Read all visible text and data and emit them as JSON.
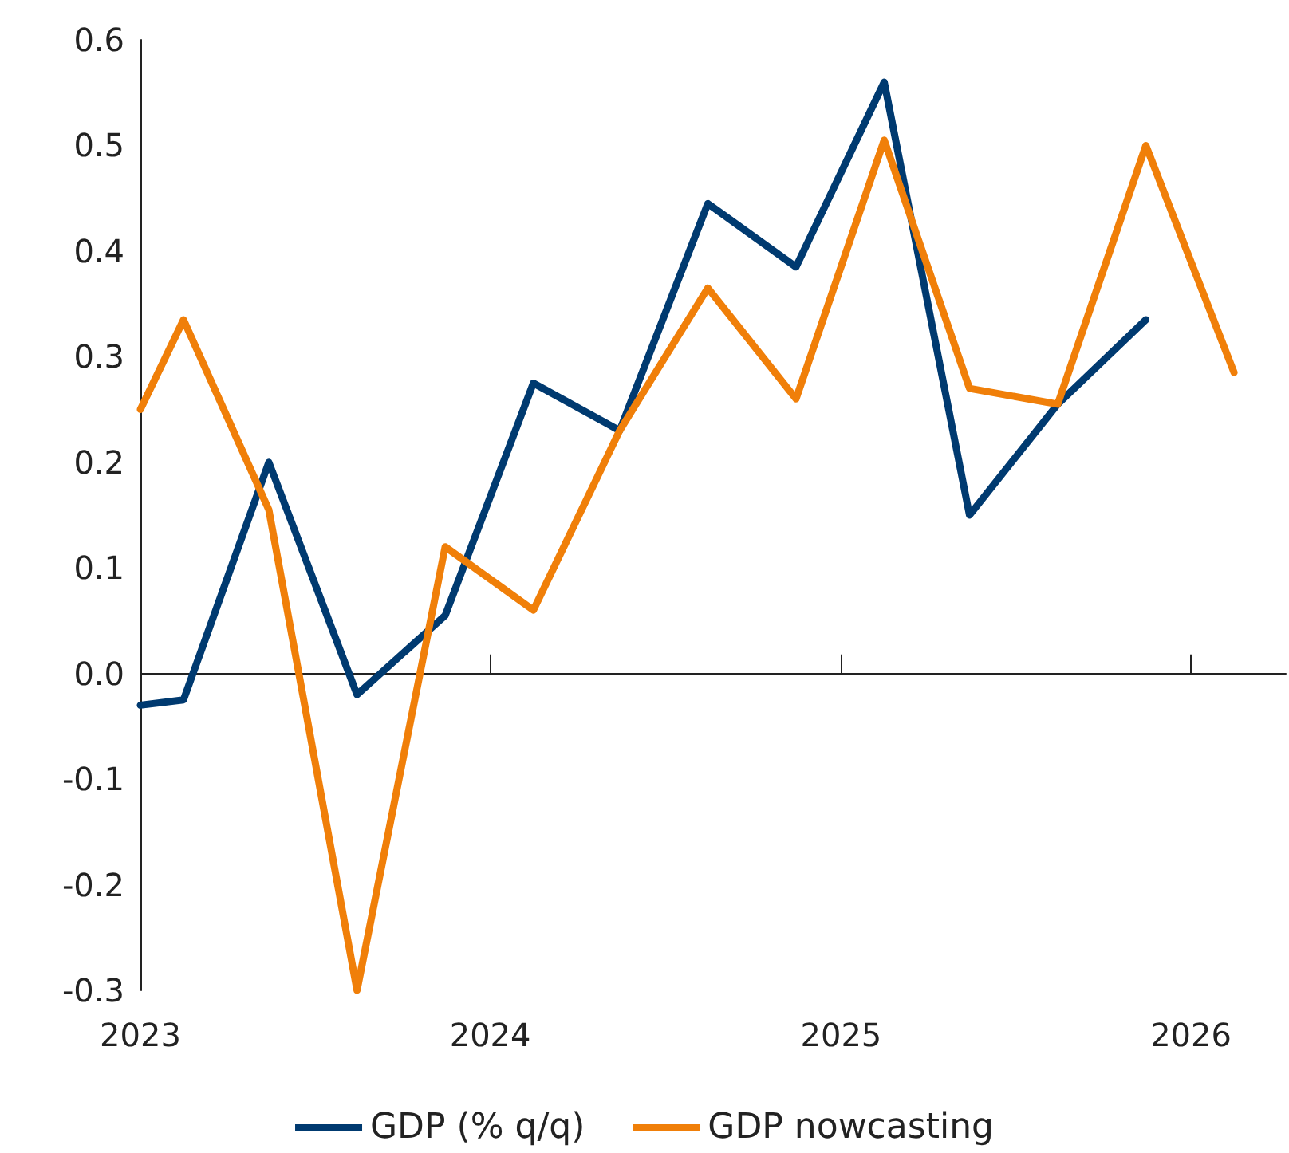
{
  "chart_data": {
    "type": "line",
    "x": [
      "2023-01-01",
      "2023-02-15",
      "2023-05-15",
      "2023-08-15",
      "2023-11-15",
      "2024-02-15",
      "2024-05-15",
      "2024-08-15",
      "2024-11-15",
      "2025-02-15",
      "2025-05-15",
      "2025-08-15",
      "2025-11-15",
      "2026-02-15"
    ],
    "series": [
      {
        "name": "GDP (% q/q)",
        "color": "#003a70",
        "values": [
          -0.03,
          -0.025,
          0.2,
          -0.02,
          0.055,
          0.275,
          0.23,
          0.445,
          0.385,
          0.56,
          0.15,
          0.255,
          0.335,
          null
        ]
      },
      {
        "name": "GDP nowcasting",
        "color": "#f07f09",
        "values": [
          0.25,
          0.335,
          0.155,
          -0.3,
          0.12,
          0.06,
          0.23,
          0.365,
          0.26,
          0.505,
          0.27,
          0.255,
          0.5,
          0.285
        ]
      }
    ],
    "xlim": [
      "2023-01-01",
      "2026-04-10"
    ],
    "xticks": [
      {
        "value": "2023-01-01",
        "label": "2023"
      },
      {
        "value": "2024-01-01",
        "label": "2024"
      },
      {
        "value": "2025-01-01",
        "label": "2025"
      },
      {
        "value": "2026-01-01",
        "label": "2026"
      }
    ],
    "ylim": [
      -0.3,
      0.6
    ],
    "yticks": [
      -0.3,
      -0.2,
      -0.1,
      {
        "value": 0,
        "label": "0.0"
      },
      0.1,
      0.2,
      0.3,
      0.4,
      0.5,
      0.6
    ],
    "legend": "bottom",
    "marker": "none",
    "line_style": "solid"
  }
}
